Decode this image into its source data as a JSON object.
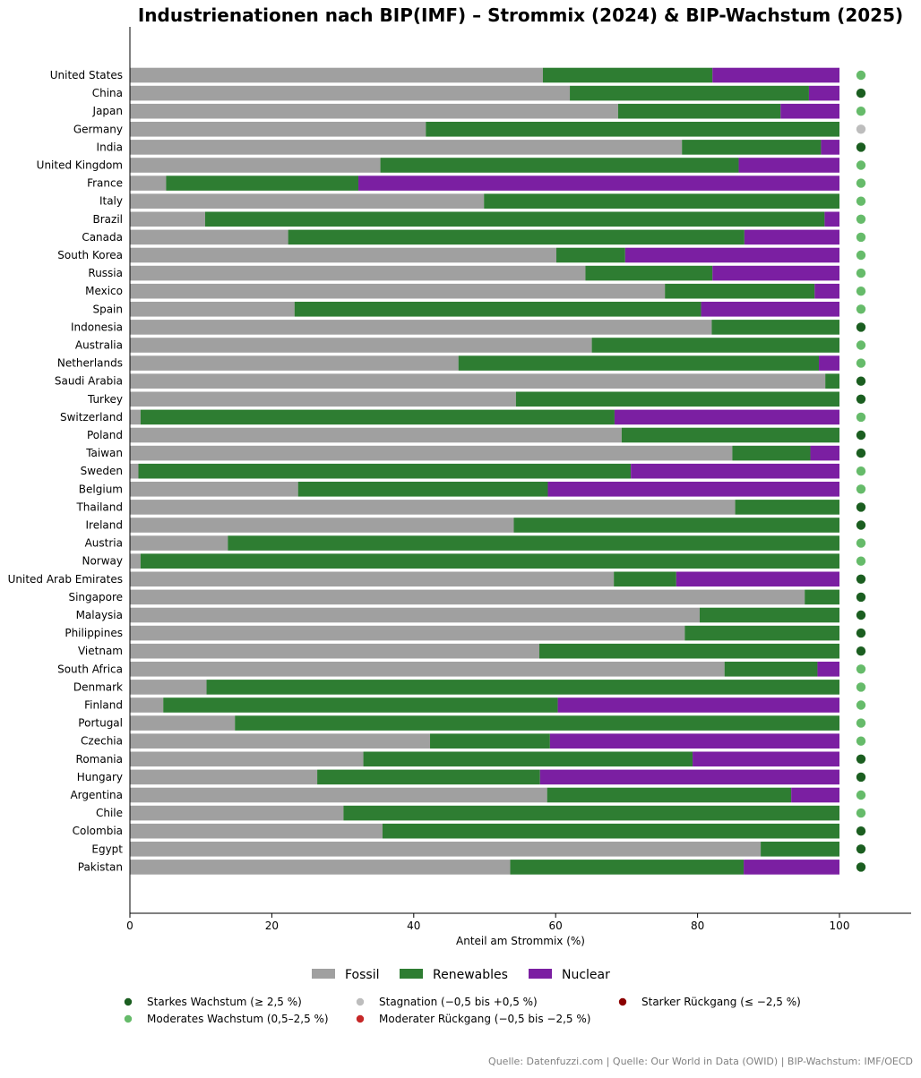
{
  "chart_data": {
    "type": "bar",
    "orientation": "horizontal",
    "stacked": true,
    "title": "Industrienationen nach BIP(IMF) – Strommix (2024) & BIP-Wachstum (2025)",
    "xlabel": "Anteil am Strommix (%)",
    "xlim": [
      0,
      110
    ],
    "xticks": [
      0,
      20,
      40,
      60,
      80,
      100
    ],
    "grid": false,
    "categories": [
      "United States",
      "China",
      "Japan",
      "Germany",
      "India",
      "United Kingdom",
      "France",
      "Italy",
      "Brazil",
      "Canada",
      "South Korea",
      "Russia",
      "Mexico",
      "Spain",
      "Indonesia",
      "Australia",
      "Netherlands",
      "Saudi Arabia",
      "Turkey",
      "Switzerland",
      "Poland",
      "Taiwan",
      "Sweden",
      "Belgium",
      "Thailand",
      "Ireland",
      "Austria",
      "Norway",
      "United Arab Emirates",
      "Singapore",
      "Malaysia",
      "Philippines",
      "Vietnam",
      "South Africa",
      "Denmark",
      "Finland",
      "Portugal",
      "Czechia",
      "Romania",
      "Hungary",
      "Argentina",
      "Chile",
      "Colombia",
      "Egypt",
      "Pakistan"
    ],
    "series": [
      {
        "name": "Fossil",
        "color": "#a0a0a0",
        "values": [
          58.2,
          62,
          68.8,
          41.7,
          77.8,
          35.3,
          5.1,
          49.9,
          10.6,
          22.3,
          60.1,
          64.2,
          75.4,
          23.2,
          82,
          65.1,
          46.3,
          98,
          54.4,
          1.5,
          69.3,
          84.9,
          1.2,
          23.7,
          85.3,
          54.1,
          13.8,
          1.5,
          68.2,
          95.1,
          80.3,
          78.2,
          57.7,
          83.8,
          10.8,
          4.7,
          14.8,
          42.3,
          32.9,
          26.4,
          58.8,
          30.1,
          35.6,
          88.9,
          53.6
        ]
      },
      {
        "name": "Renewables",
        "color": "#2e7d32",
        "values": [
          23.9,
          33.7,
          22.9,
          58.3,
          19.6,
          50.5,
          27.1,
          50.1,
          87.3,
          64.3,
          9.7,
          17.9,
          21.1,
          57.3,
          18,
          34.9,
          50.8,
          2,
          45.6,
          66.8,
          30.7,
          11,
          69.4,
          35.2,
          14.7,
          45.9,
          86.2,
          98.5,
          8.8,
          4.9,
          19.7,
          21.8,
          42.3,
          13.1,
          89.2,
          55.6,
          85.2,
          16.9,
          46.4,
          31.4,
          34.4,
          69.9,
          64.4,
          11.1,
          32.9
        ]
      },
      {
        "name": "Nuclear",
        "color": "#7b1fa2",
        "values": [
          17.9,
          4.3,
          8.3,
          0,
          2.6,
          14.2,
          67.8,
          0,
          2.1,
          13.4,
          30.2,
          17.9,
          3.5,
          19.5,
          0,
          0,
          2.9,
          0,
          0,
          31.7,
          0,
          4.1,
          29.4,
          41.1,
          0,
          0,
          0,
          0,
          23,
          0,
          0,
          0,
          0,
          3.1,
          0,
          39.7,
          0,
          40.8,
          20.7,
          42.2,
          6.8,
          0,
          0,
          0,
          13.5
        ]
      }
    ],
    "growth": [
      "moderate",
      "strong",
      "moderate",
      "stagnation",
      "strong",
      "moderate",
      "moderate",
      "moderate",
      "moderate",
      "moderate",
      "moderate",
      "moderate",
      "moderate",
      "moderate",
      "strong",
      "moderate",
      "moderate",
      "strong",
      "strong",
      "moderate",
      "strong",
      "strong",
      "moderate",
      "moderate",
      "strong",
      "strong",
      "moderate",
      "moderate",
      "strong",
      "strong",
      "strong",
      "strong",
      "strong",
      "moderate",
      "moderate",
      "moderate",
      "moderate",
      "moderate",
      "strong",
      "strong",
      "moderate",
      "moderate",
      "strong",
      "strong",
      "strong"
    ],
    "growth_legend": [
      {
        "key": "strong",
        "label": "Starkes Wachstum (≥ 2,5 %)",
        "color": "#1b5e20"
      },
      {
        "key": "moderate",
        "label": "Moderates Wachstum (0,5–2,5 %)",
        "color": "#66bb6a"
      },
      {
        "key": "stagnation",
        "label": "Stagnation (−0,5 bis +0,5 %)",
        "color": "#bdbdbd"
      },
      {
        "key": "moderate_decline",
        "label": "Moderater Rückgang (−0,5 bis −2,5 %)",
        "color": "#c62828"
      },
      {
        "key": "strong_decline",
        "label": "Starker Rückgang (≤ −2,5 %)",
        "color": "#8b0000"
      }
    ],
    "legend_placement": "bottom",
    "source": "Quelle: Datenfuzzi.com | Quelle: Our World in Data (OWID) | BIP-Wachstum: IMF/OECD"
  }
}
